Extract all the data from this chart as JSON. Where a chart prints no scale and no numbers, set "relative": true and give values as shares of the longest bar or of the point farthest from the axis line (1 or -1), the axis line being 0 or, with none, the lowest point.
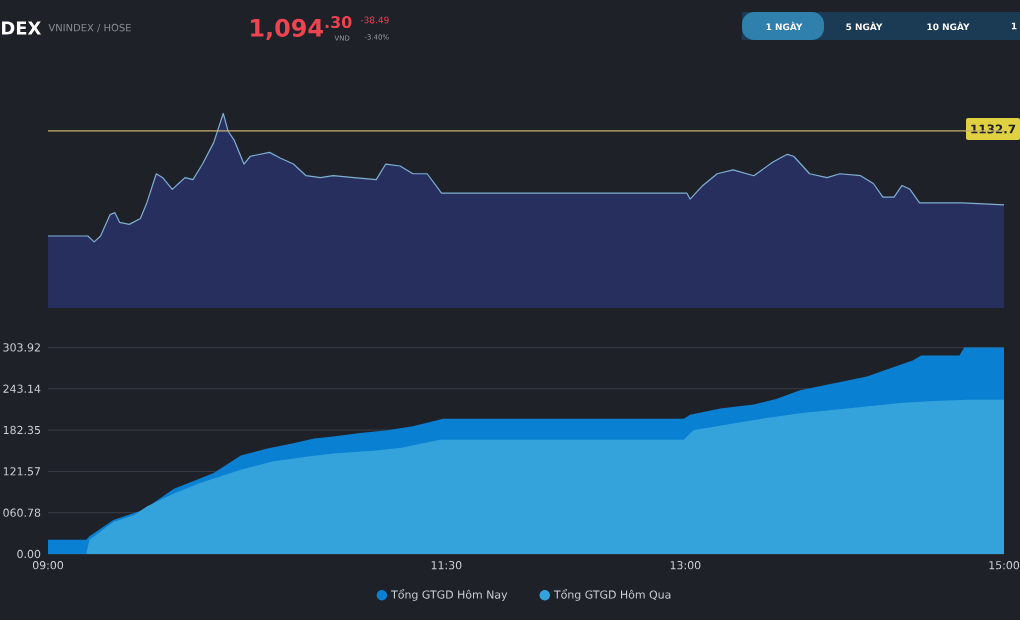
{
  "chart_data": [
    {
      "type": "area",
      "title": "DEX",
      "subtitle": "VNINDEX / HOSE",
      "annotations": [
        "1,094$^{.30}$",
        "VND",
        "-38.49",
        "-3.40%",
        "1 NGÀY",
        "5 NGÀY",
        "10 NGÀY",
        "1",
        "1132.7"
      ],
      "relative": true,
      "color": "#7fb0d4",
      "xlim": [
        9,
        15
      ],
      "tick_labels": false,
      "x": [
        9.0,
        9.25,
        9.29,
        9.33,
        9.39,
        9.42,
        9.45,
        9.51,
        9.58,
        9.62,
        9.68,
        9.72,
        9.78,
        9.82,
        9.86,
        9.91,
        9.97,
        10.04,
        10.1,
        10.13,
        10.17,
        10.23,
        10.27,
        10.33,
        10.39,
        10.46,
        10.54,
        10.62,
        10.71,
        10.79,
        10.92,
        11.06,
        11.12,
        11.21,
        11.29,
        11.38,
        11.47,
        13.01,
        13.03,
        13.11,
        13.2,
        13.3,
        13.43,
        13.55,
        13.64,
        13.68,
        13.78,
        13.89,
        13.97,
        14.1,
        14.18,
        14.24,
        14.31,
        14.36,
        14.41,
        14.47,
        14.74,
        15.0
      ],
      "values": [
        0.37,
        0.37,
        0.34,
        0.37,
        0.48,
        0.49,
        0.44,
        0.43,
        0.46,
        0.54,
        0.69,
        0.67,
        0.61,
        0.64,
        0.67,
        0.66,
        0.74,
        0.85,
        1.0,
        0.91,
        0.86,
        0.74,
        0.78,
        0.79,
        0.8,
        0.77,
        0.74,
        0.68,
        0.67,
        0.68,
        0.67,
        0.66,
        0.74,
        0.73,
        0.69,
        0.69,
        0.59,
        0.59,
        0.56,
        0.63,
        0.69,
        0.71,
        0.68,
        0.75,
        0.79,
        0.78,
        0.69,
        0.67,
        0.69,
        0.68,
        0.64,
        0.57,
        0.57,
        0.63,
        0.61,
        0.54,
        0.54,
        0.53
      ],
      "ref_lines": [
        {
          "axis": "y",
          "value": 0.91,
          "color": "#c9b26b"
        }
      ]
    },
    {
      "type": "area",
      "xlim": [
        9,
        15
      ],
      "ylim": [
        0,
        303.92
      ],
      "xticks": [
        {
          "value": 9,
          "label": "09:00"
        },
        {
          "value": 11.5,
          "label": "11:30"
        },
        {
          "value": 13,
          "label": "13:00"
        },
        {
          "value": 15,
          "label": "15:00"
        }
      ],
      "yticks": [
        {
          "value": 0,
          "label": "0.00"
        },
        {
          "value": 60.78,
          "label": "060.78"
        },
        {
          "value": 121.57,
          "label": "121.57"
        },
        {
          "value": 182.35,
          "label": "182.35"
        },
        {
          "value": 243.14,
          "label": "243.14"
        },
        {
          "value": 303.92,
          "label": "303.92"
        }
      ],
      "grid": "y",
      "legend": "bottom",
      "series": [
        {
          "name": "Tổng GTGD Hôm Nay",
          "color": "#0a80d2",
          "x": [
            9.0,
            9.24,
            9.26,
            9.41,
            9.6,
            9.79,
            9.91,
            10.04,
            10.21,
            10.37,
            10.54,
            10.67,
            10.79,
            10.96,
            11.13,
            11.29,
            11.48,
            11.84,
            12.99,
            13.03,
            13.22,
            13.43,
            13.57,
            13.72,
            13.93,
            14.14,
            14.26,
            14.43,
            14.48,
            14.72,
            14.75,
            15.0
          ],
          "values": [
            21,
            21,
            26,
            50,
            65,
            96,
            107,
            119,
            145,
            155,
            163,
            170,
            173,
            178,
            182,
            188,
            199,
            199,
            199,
            205,
            214,
            220,
            228,
            241,
            251,
            261,
            271,
            285,
            292,
            292,
            303.92,
            303.92
          ]
        },
        {
          "name": "Tổng GTGD Hôm Qua",
          "color": "#34a3dc",
          "x": [
            9.24,
            9.26,
            9.41,
            9.54,
            9.62,
            9.79,
            9.95,
            10.21,
            10.41,
            10.62,
            10.79,
            11.04,
            11.21,
            11.46,
            11.84,
            12.99,
            13.05,
            13.3,
            13.51,
            13.72,
            13.93,
            14.14,
            14.35,
            14.56,
            14.77,
            15.0
          ],
          "values": [
            0,
            21,
            47,
            57,
            70,
            89,
            104,
            124,
            136,
            143,
            148,
            152,
            156,
            168,
            168,
            168,
            182,
            192,
            200,
            207,
            212,
            217,
            222,
            225,
            227,
            227
          ]
        }
      ]
    }
  ]
}
